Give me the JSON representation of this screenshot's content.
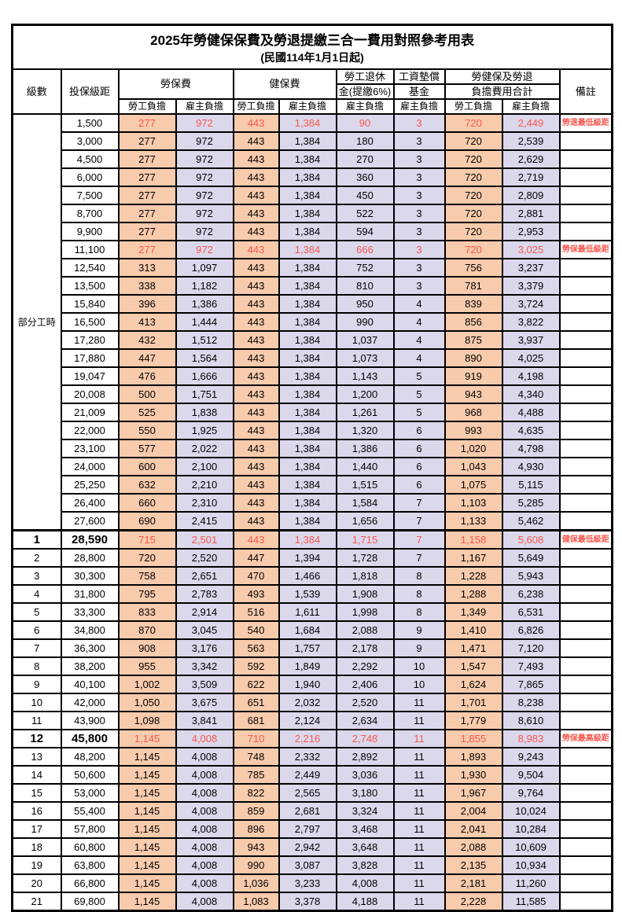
{
  "title": "2025年勞健保保費及勞退提繳三合一費用對照參考用表",
  "subtitle": "(民國114年1月1日起)",
  "colors": {
    "employee_bg": "#F8CBAD",
    "employer_bg": "#DBD8EC",
    "highlight_red": "#F9574D",
    "border": "#000000"
  },
  "headers": {
    "level": "級數",
    "salary": "投保級距",
    "labor": "勞保費",
    "health": "健保費",
    "pension_l1": "勞工退休",
    "pension_l2": "金(提繳6%)",
    "wage_l1": "工資墊償",
    "wage_l2": "基金",
    "total_l1": "勞健保及勞退",
    "total_l2": "負擔費用合計",
    "remark": "備註",
    "employee": "勞工負擔",
    "employer": "雇主負擔"
  },
  "table": {
    "value_col_classes": [
      "emp",
      "er",
      "emp",
      "er",
      "er",
      "er",
      "emp",
      "er"
    ],
    "part_time_label": "部分工時",
    "part_time_span": 23,
    "rows": [
      {
        "level": "",
        "salary": "1,500",
        "values": [
          "277",
          "972",
          "443",
          "1,384",
          "90",
          "3",
          "720",
          "2,449"
        ],
        "remark": "勞退最低級距",
        "red": true,
        "emph": false,
        "sectionTop": false
      },
      {
        "level": "",
        "salary": "3,000",
        "values": [
          "277",
          "972",
          "443",
          "1,384",
          "180",
          "3",
          "720",
          "2,539"
        ],
        "remark": "",
        "red": false,
        "emph": false,
        "sectionTop": false
      },
      {
        "level": "",
        "salary": "4,500",
        "values": [
          "277",
          "972",
          "443",
          "1,384",
          "270",
          "3",
          "720",
          "2,629"
        ],
        "remark": "",
        "red": false,
        "emph": false,
        "sectionTop": false
      },
      {
        "level": "",
        "salary": "6,000",
        "values": [
          "277",
          "972",
          "443",
          "1,384",
          "360",
          "3",
          "720",
          "2,719"
        ],
        "remark": "",
        "red": false,
        "emph": false,
        "sectionTop": false
      },
      {
        "level": "",
        "salary": "7,500",
        "values": [
          "277",
          "972",
          "443",
          "1,384",
          "450",
          "3",
          "720",
          "2,809"
        ],
        "remark": "",
        "red": false,
        "emph": false,
        "sectionTop": false
      },
      {
        "level": "",
        "salary": "8,700",
        "values": [
          "277",
          "972",
          "443",
          "1,384",
          "522",
          "3",
          "720",
          "2,881"
        ],
        "remark": "",
        "red": false,
        "emph": false,
        "sectionTop": false
      },
      {
        "level": "",
        "salary": "9,900",
        "values": [
          "277",
          "972",
          "443",
          "1,384",
          "594",
          "3",
          "720",
          "2,953"
        ],
        "remark": "",
        "red": false,
        "emph": false,
        "sectionTop": false
      },
      {
        "level": "",
        "salary": "11,100",
        "values": [
          "277",
          "972",
          "443",
          "1,384",
          "666",
          "3",
          "720",
          "3,025"
        ],
        "remark": "勞保最低級距",
        "red": true,
        "emph": false,
        "sectionTop": false
      },
      {
        "level": "",
        "salary": "12,540",
        "values": [
          "313",
          "1,097",
          "443",
          "1,384",
          "752",
          "3",
          "756",
          "3,237"
        ],
        "remark": "",
        "red": false,
        "emph": false,
        "sectionTop": false
      },
      {
        "level": "",
        "salary": "13,500",
        "values": [
          "338",
          "1,182",
          "443",
          "1,384",
          "810",
          "3",
          "781",
          "3,379"
        ],
        "remark": "",
        "red": false,
        "emph": false,
        "sectionTop": false
      },
      {
        "level": "",
        "salary": "15,840",
        "values": [
          "396",
          "1,386",
          "443",
          "1,384",
          "950",
          "4",
          "839",
          "3,724"
        ],
        "remark": "",
        "red": false,
        "emph": false,
        "sectionTop": false
      },
      {
        "level": "",
        "salary": "16,500",
        "values": [
          "413",
          "1,444",
          "443",
          "1,384",
          "990",
          "4",
          "856",
          "3,822"
        ],
        "remark": "",
        "red": false,
        "emph": false,
        "sectionTop": false
      },
      {
        "level": "",
        "salary": "17,280",
        "values": [
          "432",
          "1,512",
          "443",
          "1,384",
          "1,037",
          "4",
          "875",
          "3,937"
        ],
        "remark": "",
        "red": false,
        "emph": false,
        "sectionTop": false
      },
      {
        "level": "",
        "salary": "17,880",
        "values": [
          "447",
          "1,564",
          "443",
          "1,384",
          "1,073",
          "4",
          "890",
          "4,025"
        ],
        "remark": "",
        "red": false,
        "emph": false,
        "sectionTop": false
      },
      {
        "level": "",
        "salary": "19,047",
        "values": [
          "476",
          "1,666",
          "443",
          "1,384",
          "1,143",
          "5",
          "919",
          "4,198"
        ],
        "remark": "",
        "red": false,
        "emph": false,
        "sectionTop": false
      },
      {
        "level": "",
        "salary": "20,008",
        "values": [
          "500",
          "1,751",
          "443",
          "1,384",
          "1,200",
          "5",
          "943",
          "4,340"
        ],
        "remark": "",
        "red": false,
        "emph": false,
        "sectionTop": false
      },
      {
        "level": "",
        "salary": "21,009",
        "values": [
          "525",
          "1,838",
          "443",
          "1,384",
          "1,261",
          "5",
          "968",
          "4,488"
        ],
        "remark": "",
        "red": false,
        "emph": false,
        "sectionTop": false
      },
      {
        "level": "",
        "salary": "22,000",
        "values": [
          "550",
          "1,925",
          "443",
          "1,384",
          "1,320",
          "6",
          "993",
          "4,635"
        ],
        "remark": "",
        "red": false,
        "emph": false,
        "sectionTop": false
      },
      {
        "level": "",
        "salary": "23,100",
        "values": [
          "577",
          "2,022",
          "443",
          "1,384",
          "1,386",
          "6",
          "1,020",
          "4,798"
        ],
        "remark": "",
        "red": false,
        "emph": false,
        "sectionTop": false
      },
      {
        "level": "",
        "salary": "24,000",
        "values": [
          "600",
          "2,100",
          "443",
          "1,384",
          "1,440",
          "6",
          "1,043",
          "4,930"
        ],
        "remark": "",
        "red": false,
        "emph": false,
        "sectionTop": false
      },
      {
        "level": "",
        "salary": "25,250",
        "values": [
          "632",
          "2,210",
          "443",
          "1,384",
          "1,515",
          "6",
          "1,075",
          "5,115"
        ],
        "remark": "",
        "red": false,
        "emph": false,
        "sectionTop": false
      },
      {
        "level": "",
        "salary": "26,400",
        "values": [
          "660",
          "2,310",
          "443",
          "1,384",
          "1,584",
          "7",
          "1,103",
          "5,285"
        ],
        "remark": "",
        "red": false,
        "emph": false,
        "sectionTop": false
      },
      {
        "level": "",
        "salary": "27,600",
        "values": [
          "690",
          "2,415",
          "443",
          "1,384",
          "1,656",
          "7",
          "1,133",
          "5,462"
        ],
        "remark": "",
        "red": false,
        "emph": false,
        "sectionTop": false
      },
      {
        "level": "1",
        "salary": "28,590",
        "values": [
          "715",
          "2,501",
          "443",
          "1,384",
          "1,715",
          "7",
          "1,158",
          "5,608"
        ],
        "remark": "健保最低級距",
        "red": true,
        "emph": true,
        "sectionTop": true
      },
      {
        "level": "2",
        "salary": "28,800",
        "values": [
          "720",
          "2,520",
          "447",
          "1,394",
          "1,728",
          "7",
          "1,167",
          "5,649"
        ],
        "remark": "",
        "red": false,
        "emph": false,
        "sectionTop": false
      },
      {
        "level": "3",
        "salary": "30,300",
        "values": [
          "758",
          "2,651",
          "470",
          "1,466",
          "1,818",
          "8",
          "1,228",
          "5,943"
        ],
        "remark": "",
        "red": false,
        "emph": false,
        "sectionTop": false
      },
      {
        "level": "4",
        "salary": "31,800",
        "values": [
          "795",
          "2,783",
          "493",
          "1,539",
          "1,908",
          "8",
          "1,288",
          "6,238"
        ],
        "remark": "",
        "red": false,
        "emph": false,
        "sectionTop": false
      },
      {
        "level": "5",
        "salary": "33,300",
        "values": [
          "833",
          "2,914",
          "516",
          "1,611",
          "1,998",
          "8",
          "1,349",
          "6,531"
        ],
        "remark": "",
        "red": false,
        "emph": false,
        "sectionTop": false
      },
      {
        "level": "6",
        "salary": "34,800",
        "values": [
          "870",
          "3,045",
          "540",
          "1,684",
          "2,088",
          "9",
          "1,410",
          "6,826"
        ],
        "remark": "",
        "red": false,
        "emph": false,
        "sectionTop": false
      },
      {
        "level": "7",
        "salary": "36,300",
        "values": [
          "908",
          "3,176",
          "563",
          "1,757",
          "2,178",
          "9",
          "1,471",
          "7,120"
        ],
        "remark": "",
        "red": false,
        "emph": false,
        "sectionTop": false
      },
      {
        "level": "8",
        "salary": "38,200",
        "values": [
          "955",
          "3,342",
          "592",
          "1,849",
          "2,292",
          "10",
          "1,547",
          "7,493"
        ],
        "remark": "",
        "red": false,
        "emph": false,
        "sectionTop": false
      },
      {
        "level": "9",
        "salary": "40,100",
        "values": [
          "1,002",
          "3,509",
          "622",
          "1,940",
          "2,406",
          "10",
          "1,624",
          "7,865"
        ],
        "remark": "",
        "red": false,
        "emph": false,
        "sectionTop": false
      },
      {
        "level": "10",
        "salary": "42,000",
        "values": [
          "1,050",
          "3,675",
          "651",
          "2,032",
          "2,520",
          "11",
          "1,701",
          "8,238"
        ],
        "remark": "",
        "red": false,
        "emph": false,
        "sectionTop": false
      },
      {
        "level": "11",
        "salary": "43,900",
        "values": [
          "1,098",
          "3,841",
          "681",
          "2,124",
          "2,634",
          "11",
          "1,779",
          "8,610"
        ],
        "remark": "",
        "red": false,
        "emph": false,
        "sectionTop": false
      },
      {
        "level": "12",
        "salary": "45,800",
        "values": [
          "1,145",
          "4,008",
          "710",
          "2,216",
          "2,748",
          "11",
          "1,855",
          "8,983"
        ],
        "remark": "勞保最高級距",
        "red": true,
        "emph": true,
        "sectionTop": false
      },
      {
        "level": "13",
        "salary": "48,200",
        "values": [
          "1,145",
          "4,008",
          "748",
          "2,332",
          "2,892",
          "11",
          "1,893",
          "9,243"
        ],
        "remark": "",
        "red": false,
        "emph": false,
        "sectionTop": false
      },
      {
        "level": "14",
        "salary": "50,600",
        "values": [
          "1,145",
          "4,008",
          "785",
          "2,449",
          "3,036",
          "11",
          "1,930",
          "9,504"
        ],
        "remark": "",
        "red": false,
        "emph": false,
        "sectionTop": false
      },
      {
        "level": "15",
        "salary": "53,000",
        "values": [
          "1,145",
          "4,008",
          "822",
          "2,565",
          "3,180",
          "11",
          "1,967",
          "9,764"
        ],
        "remark": "",
        "red": false,
        "emph": false,
        "sectionTop": false
      },
      {
        "level": "16",
        "salary": "55,400",
        "values": [
          "1,145",
          "4,008",
          "859",
          "2,681",
          "3,324",
          "11",
          "2,004",
          "10,024"
        ],
        "remark": "",
        "red": false,
        "emph": false,
        "sectionTop": false
      },
      {
        "level": "17",
        "salary": "57,800",
        "values": [
          "1,145",
          "4,008",
          "896",
          "2,797",
          "3,468",
          "11",
          "2,041",
          "10,284"
        ],
        "remark": "",
        "red": false,
        "emph": false,
        "sectionTop": false
      },
      {
        "level": "18",
        "salary": "60,800",
        "values": [
          "1,145",
          "4,008",
          "943",
          "2,942",
          "3,648",
          "11",
          "2,088",
          "10,609"
        ],
        "remark": "",
        "red": false,
        "emph": false,
        "sectionTop": false
      },
      {
        "level": "19",
        "salary": "63,800",
        "values": [
          "1,145",
          "4,008",
          "990",
          "3,087",
          "3,828",
          "11",
          "2,135",
          "10,934"
        ],
        "remark": "",
        "red": false,
        "emph": false,
        "sectionTop": false
      },
      {
        "level": "20",
        "salary": "66,800",
        "values": [
          "1,145",
          "4,008",
          "1,036",
          "3,233",
          "4,008",
          "11",
          "2,181",
          "11,260"
        ],
        "remark": "",
        "red": false,
        "emph": false,
        "sectionTop": false
      },
      {
        "level": "21",
        "salary": "69,800",
        "values": [
          "1,145",
          "4,008",
          "1,083",
          "3,378",
          "4,188",
          "11",
          "2,228",
          "11,585"
        ],
        "remark": "",
        "red": false,
        "emph": false,
        "sectionTop": false
      }
    ]
  }
}
